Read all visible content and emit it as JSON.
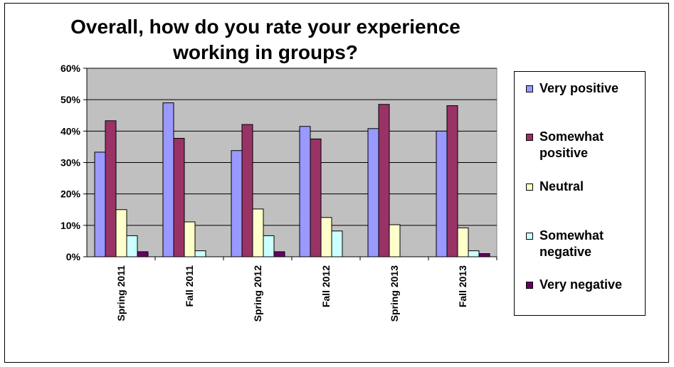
{
  "chart_data": {
    "type": "bar",
    "title": "Overall, how do you rate your experience\nworking in groups?",
    "xlabel": "",
    "ylabel": "",
    "categories": [
      "Spring 2011",
      "Fall 2011",
      "Spring 2012",
      "Fall 2012",
      "Spring 2013",
      "Fall 2013"
    ],
    "series": [
      {
        "name": "Very positive",
        "color": "#9999ff",
        "values": [
          33.3,
          49.0,
          33.8,
          41.5,
          40.8,
          40.0
        ]
      },
      {
        "name": "Somewhat positive",
        "color": "#993366",
        "values": [
          43.3,
          37.7,
          42.1,
          37.5,
          48.5,
          48.1
        ]
      },
      {
        "name": "Neutral",
        "color": "#ffffcc",
        "values": [
          15.0,
          11.1,
          15.2,
          12.5,
          10.2,
          9.2
        ]
      },
      {
        "name": "Somewhat negative",
        "color": "#ccffff",
        "values": [
          6.7,
          1.9,
          6.7,
          8.2,
          0,
          1.9
        ]
      },
      {
        "name": "Very negative",
        "color": "#660066",
        "values": [
          1.6,
          0,
          1.6,
          0,
          0,
          1.0
        ]
      }
    ],
    "ylim": [
      0,
      60
    ],
    "yticks": [
      "0%",
      "10%",
      "20%",
      "30%",
      "40%",
      "50%",
      "60%"
    ],
    "grid": true,
    "plot_background": "#c0c0c0",
    "legend_position": "right"
  }
}
